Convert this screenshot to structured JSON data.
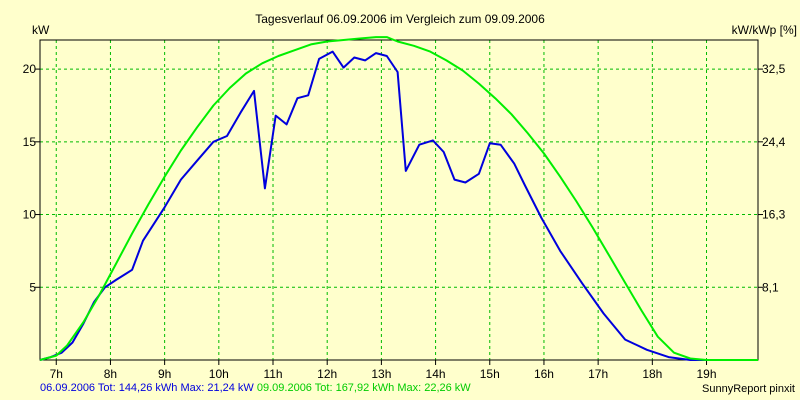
{
  "title": "Tagesverlauf 06.09.2006 im Vergleich zum 09.09.2006",
  "y_left_unit": "kW",
  "y_right_unit": "kW/kWp [%]",
  "footer": {
    "series1_stats": "06.09.2006 Tot: 144,26 kWh Max: 21,24 kW",
    "series2_stats": "09.09.2006 Tot: 167,92 kWh Max: 22,26 kW",
    "credit": "SunnyReport pinxit"
  },
  "colors": {
    "background": "#ffffcc",
    "grid": "#00bb00",
    "series1": "#0000dd",
    "series2": "#00ee00",
    "series1_text": "#0000dd",
    "series2_text": "#00cc00"
  },
  "chart_data": {
    "type": "line",
    "title": "Tagesverlauf 06.09.2006 im Vergleich zum 09.09.2006",
    "xlim": [
      6.7,
      19.95
    ],
    "ylim": [
      0,
      22
    ],
    "x_ticks": [
      7,
      8,
      9,
      10,
      11,
      12,
      13,
      14,
      15,
      16,
      17,
      18,
      19
    ],
    "x_tick_labels": [
      "7h",
      "8h",
      "9h",
      "10h",
      "11h",
      "12h",
      "13h",
      "14h",
      "15h",
      "16h",
      "17h",
      "18h",
      "19h"
    ],
    "y_left_ticks": [
      5,
      10,
      15,
      20
    ],
    "y_left_tick_labels": [
      "5",
      "10",
      "15",
      "20"
    ],
    "y_right_ticks": [
      5,
      10,
      15,
      20
    ],
    "y_right_tick_labels": [
      "8,1",
      "16,3",
      "24,4",
      "32,5"
    ],
    "grid": true,
    "series": [
      {
        "name": "06.09.2006",
        "color": "#0000dd",
        "x": [
          6.7,
          6.9,
          7.1,
          7.3,
          7.5,
          7.7,
          7.9,
          8.1,
          8.4,
          8.6,
          9.0,
          9.3,
          9.6,
          9.9,
          10.15,
          10.4,
          10.65,
          10.85,
          11.05,
          11.25,
          11.45,
          11.65,
          11.85,
          12.1,
          12.3,
          12.5,
          12.7,
          12.9,
          13.1,
          13.3,
          13.45,
          13.7,
          13.95,
          14.15,
          14.35,
          14.55,
          14.8,
          15.0,
          15.2,
          15.45,
          15.65,
          15.95,
          16.3,
          16.7,
          17.1,
          17.5,
          17.9,
          18.3,
          18.7,
          19.1,
          19.5,
          19.7,
          19.95
        ],
        "y": [
          0,
          0.2,
          0.5,
          1.2,
          2.5,
          4.0,
          5.0,
          5.5,
          6.2,
          8.2,
          10.5,
          12.4,
          13.7,
          15.0,
          15.4,
          17.0,
          18.5,
          11.8,
          16.8,
          16.2,
          18.0,
          18.2,
          20.7,
          21.2,
          20.1,
          20.8,
          20.6,
          21.1,
          20.9,
          19.8,
          13.0,
          14.8,
          15.1,
          14.3,
          12.4,
          12.2,
          12.8,
          14.9,
          14.8,
          13.5,
          12.0,
          9.8,
          7.5,
          5.3,
          3.2,
          1.4,
          0.7,
          0.2,
          0,
          0,
          0,
          0,
          0
        ]
      },
      {
        "name": "09.09.2006",
        "color": "#00ee00",
        "x": [
          6.7,
          7.0,
          7.2,
          7.5,
          7.8,
          8.1,
          8.4,
          8.7,
          9.0,
          9.3,
          9.6,
          9.9,
          10.2,
          10.5,
          10.8,
          11.1,
          11.4,
          11.7,
          12.0,
          12.3,
          12.6,
          12.9,
          13.1,
          13.3,
          13.6,
          13.9,
          14.2,
          14.5,
          14.8,
          15.1,
          15.4,
          15.7,
          16.0,
          16.3,
          16.6,
          16.9,
          17.2,
          17.5,
          17.8,
          18.1,
          18.4,
          18.7,
          19.0,
          19.3,
          19.6,
          19.95
        ],
        "y": [
          0,
          0.3,
          1.0,
          2.6,
          4.5,
          6.6,
          8.7,
          10.7,
          12.6,
          14.4,
          16.0,
          17.5,
          18.7,
          19.7,
          20.4,
          20.9,
          21.3,
          21.7,
          21.9,
          22.0,
          22.1,
          22.2,
          22.2,
          21.9,
          21.6,
          21.2,
          20.6,
          19.9,
          19.0,
          18.0,
          16.9,
          15.6,
          14.2,
          12.6,
          10.9,
          9.1,
          7.2,
          5.3,
          3.4,
          1.6,
          0.5,
          0.1,
          0,
          0,
          0,
          0
        ]
      }
    ]
  }
}
